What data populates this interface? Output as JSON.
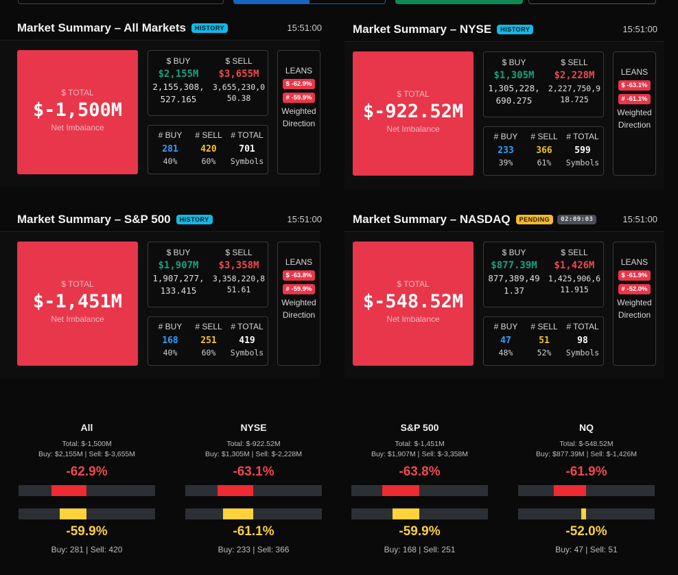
{
  "panels": [
    {
      "title": "Market Summary – All Markets",
      "badge": "HISTORY",
      "time": "15:51:00",
      "total_label": "$ TOTAL",
      "total": "$-1,500M",
      "total_sub": "Net Imbalance",
      "buy_label": "$ BUY",
      "sell_label": "$ SELL",
      "buy_amt": "$2,155M",
      "sell_amt": "$3,655M",
      "buy_full": "2,155,308,527.165",
      "sell_full": "3,655,230,050.38",
      "cnt_buy_label": "# BUY",
      "cnt_sell_label": "# SELL",
      "cnt_total_label": "# TOTAL",
      "cnt_buy": "281",
      "cnt_sell": "420",
      "cnt_total": "701",
      "pct_buy": "40%",
      "pct_sell": "60%",
      "symbols": "Symbols",
      "leans": "LEANS",
      "lean_usd": "$ -62.9%",
      "lean_cnt": "# -59.9%",
      "lean_sub": "Weighted Direction"
    },
    {
      "title": "Market Summary – NYSE",
      "badge": "HISTORY",
      "time": "15:51:00",
      "total_label": "$ TOTAL",
      "total": "$-922.52M",
      "total_sub": "Net Imbalance",
      "buy_label": "$ BUY",
      "sell_label": "$ SELL",
      "buy_amt": "$1,305M",
      "sell_amt": "$2,228M",
      "buy_full": "1,305,228,690.275",
      "sell_full": "2,227,750,918.725",
      "cnt_buy_label": "# BUY",
      "cnt_sell_label": "# SELL",
      "cnt_total_label": "# TOTAL",
      "cnt_buy": "233",
      "cnt_sell": "366",
      "cnt_total": "599",
      "pct_buy": "39%",
      "pct_sell": "61%",
      "symbols": "Symbols",
      "leans": "LEANS",
      "lean_usd": "$ -63.1%",
      "lean_cnt": "# -61.1%",
      "lean_sub": "Weighted Direction"
    },
    {
      "title": "Market Summary – S&P 500",
      "badge": "HISTORY",
      "time": "15:51:00",
      "total_label": "$ TOTAL",
      "total": "$-1,451M",
      "total_sub": "Net Imbalance",
      "buy_label": "$ BUY",
      "sell_label": "$ SELL",
      "buy_amt": "$1,907M",
      "sell_amt": "$3,358M",
      "buy_full": "1,907,277,133.415",
      "sell_full": "3,358,220,851.61",
      "cnt_buy_label": "# BUY",
      "cnt_sell_label": "# SELL",
      "cnt_total_label": "# TOTAL",
      "cnt_buy": "168",
      "cnt_sell": "251",
      "cnt_total": "419",
      "pct_buy": "40%",
      "pct_sell": "60%",
      "symbols": "Symbols",
      "leans": "LEANS",
      "lean_usd": "$ -63.8%",
      "lean_cnt": "# -59.9%",
      "lean_sub": "Weighted Direction"
    },
    {
      "title": "Market Summary – NASDAQ",
      "badge": "PENDING",
      "timer": "02:09:03",
      "time": "15:51:00",
      "total_label": "$ TOTAL",
      "total": "$-548.52M",
      "total_sub": "Net Imbalance",
      "buy_label": "$ BUY",
      "sell_label": "$ SELL",
      "buy_amt": "$877.39M",
      "sell_amt": "$1,426M",
      "buy_full": "877,389,491.37",
      "sell_full": "1,425,906,611.915",
      "cnt_buy_label": "# BUY",
      "cnt_sell_label": "# SELL",
      "cnt_total_label": "# TOTAL",
      "cnt_buy": "47",
      "cnt_sell": "51",
      "cnt_total": "98",
      "pct_buy": "48%",
      "pct_sell": "52%",
      "symbols": "Symbols",
      "leans": "LEANS",
      "lean_usd": "$ -61.9%",
      "lean_cnt": "# -52.0%",
      "lean_sub": "Weighted Direction"
    }
  ],
  "summaries": [
    {
      "name": "All",
      "total": "Total: $-1,500M",
      "buysell": "Buy: $2,155M | Sell: $-3,655M",
      "usd_pct": "-62.9%",
      "usd_value": -62.9,
      "cnt_pct": "-59.9%",
      "cnt_value": -59.9,
      "counts": "Buy: 281 | Sell: 420"
    },
    {
      "name": "NYSE",
      "total": "Total: $-922.52M",
      "buysell": "Buy: $1,305M | Sell: $-2,228M",
      "usd_pct": "-63.1%",
      "usd_value": -63.1,
      "cnt_pct": "-61.1%",
      "cnt_value": -61.1,
      "counts": "Buy: 233 | Sell: 366"
    },
    {
      "name": "S&P 500",
      "total": "Total: $-1,451M",
      "buysell": "Buy: $1,907M | Sell: $-3,358M",
      "usd_pct": "-63.8%",
      "usd_value": -63.8,
      "cnt_pct": "-59.9%",
      "cnt_value": -59.9,
      "counts": "Buy: 168 | Sell: 251"
    },
    {
      "name": "NQ",
      "total": "Total: $-548.52M",
      "buysell": "Buy: $877.39M | Sell: $-1,426M",
      "usd_pct": "-61.9%",
      "usd_value": -61.9,
      "cnt_pct": "-52.0%",
      "cnt_value": -52.0,
      "counts": "Buy: 47 | Sell: 51"
    }
  ],
  "colors": {
    "total_bg": "#e8364a",
    "buy": "#16a37f",
    "sell": "#f0484f",
    "history": "#14b8e6",
    "pending": "#f5b82e",
    "bar_red": "#ee2a33",
    "bar_yellow": "#fdd23a"
  }
}
